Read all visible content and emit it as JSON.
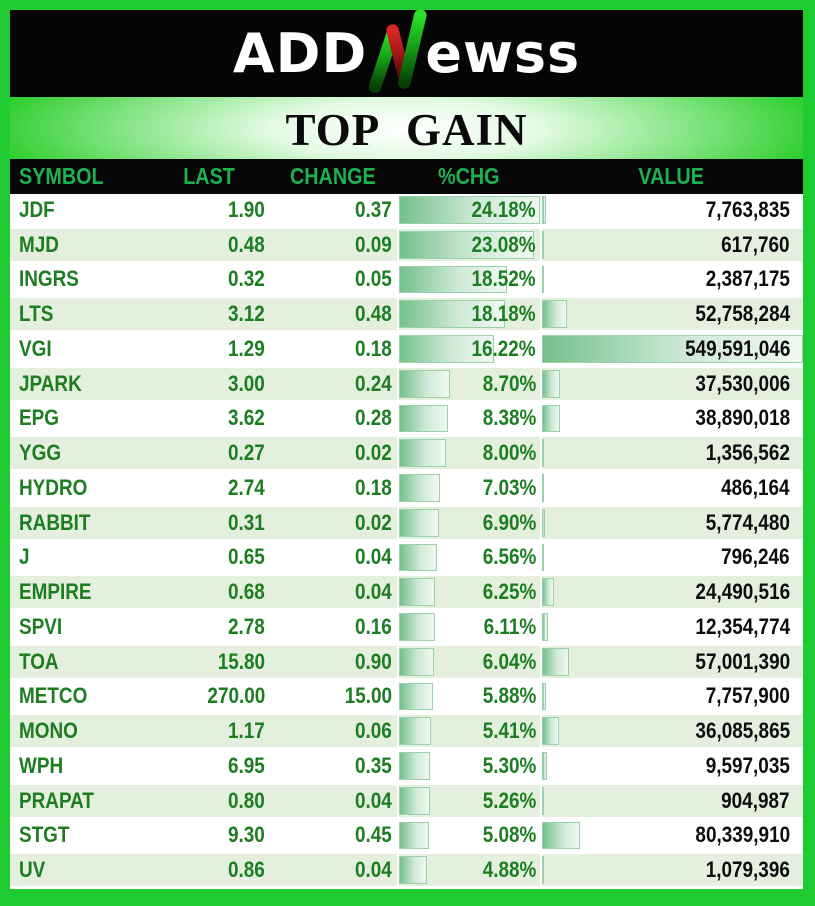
{
  "brand": {
    "prefix": "ADD",
    "suffix": "ewss",
    "n_icon": "green-red-candlestick-n-icon"
  },
  "title": "TOP GAIN",
  "colors": {
    "frame_green": "#1fcb30",
    "banner_black": "#050505",
    "header_text_green": "#1fb151",
    "body_text_green": "#1c7d21",
    "value_text_black": "#0d0d0d",
    "row_alt_green": "#e4efde",
    "databar_green": "#74c08c",
    "databar_border": "#9bd1aa",
    "logo_red": "#d42424",
    "logo_green": "#2ae02a"
  },
  "chart_data": {
    "type": "table",
    "title": "TOP GAIN",
    "columns": [
      "SYMBOL",
      "LAST",
      "CHANGE",
      "%CHG",
      "VALUE"
    ],
    "databar_columns": [
      "%CHG",
      "VALUE"
    ],
    "databar_scaling": "linear from 0 to column maximum",
    "rows": [
      {
        "symbol": "JDF",
        "last": "1.90",
        "change": "0.37",
        "pct": "24.18%",
        "pct_value": 24.18,
        "value": "7,763,835",
        "value_num": 7763835
      },
      {
        "symbol": "MJD",
        "last": "0.48",
        "change": "0.09",
        "pct": "23.08%",
        "pct_value": 23.08,
        "value": "617,760",
        "value_num": 617760
      },
      {
        "symbol": "INGRS",
        "last": "0.32",
        "change": "0.05",
        "pct": "18.52%",
        "pct_value": 18.52,
        "value": "2,387,175",
        "value_num": 2387175
      },
      {
        "symbol": "LTS",
        "last": "3.12",
        "change": "0.48",
        "pct": "18.18%",
        "pct_value": 18.18,
        "value": "52,758,284",
        "value_num": 52758284
      },
      {
        "symbol": "VGI",
        "last": "1.29",
        "change": "0.18",
        "pct": "16.22%",
        "pct_value": 16.22,
        "value": "549,591,046",
        "value_num": 549591046
      },
      {
        "symbol": "JPARK",
        "last": "3.00",
        "change": "0.24",
        "pct": "8.70%",
        "pct_value": 8.7,
        "value": "37,530,006",
        "value_num": 37530006
      },
      {
        "symbol": "EPG",
        "last": "3.62",
        "change": "0.28",
        "pct": "8.38%",
        "pct_value": 8.38,
        "value": "38,890,018",
        "value_num": 38890018
      },
      {
        "symbol": "YGG",
        "last": "0.27",
        "change": "0.02",
        "pct": "8.00%",
        "pct_value": 8.0,
        "value": "1,356,562",
        "value_num": 1356562
      },
      {
        "symbol": "HYDRO",
        "last": "2.74",
        "change": "0.18",
        "pct": "7.03%",
        "pct_value": 7.03,
        "value": "486,164",
        "value_num": 486164
      },
      {
        "symbol": "RABBIT",
        "last": "0.31",
        "change": "0.02",
        "pct": "6.90%",
        "pct_value": 6.9,
        "value": "5,774,480",
        "value_num": 5774480
      },
      {
        "symbol": "J",
        "last": "0.65",
        "change": "0.04",
        "pct": "6.56%",
        "pct_value": 6.56,
        "value": "796,246",
        "value_num": 796246
      },
      {
        "symbol": "EMPIRE",
        "last": "0.68",
        "change": "0.04",
        "pct": "6.25%",
        "pct_value": 6.25,
        "value": "24,490,516",
        "value_num": 24490516
      },
      {
        "symbol": "SPVI",
        "last": "2.78",
        "change": "0.16",
        "pct": "6.11%",
        "pct_value": 6.11,
        "value": "12,354,774",
        "value_num": 12354774
      },
      {
        "symbol": "TOA",
        "last": "15.80",
        "change": "0.90",
        "pct": "6.04%",
        "pct_value": 6.04,
        "value": "57,001,390",
        "value_num": 57001390
      },
      {
        "symbol": "METCO",
        "last": "270.00",
        "change": "15.00",
        "pct": "5.88%",
        "pct_value": 5.88,
        "value": "7,757,900",
        "value_num": 7757900
      },
      {
        "symbol": "MONO",
        "last": "1.17",
        "change": "0.06",
        "pct": "5.41%",
        "pct_value": 5.41,
        "value": "36,085,865",
        "value_num": 36085865
      },
      {
        "symbol": "WPH",
        "last": "6.95",
        "change": "0.35",
        "pct": "5.30%",
        "pct_value": 5.3,
        "value": "9,597,035",
        "value_num": 9597035
      },
      {
        "symbol": "PRAPAT",
        "last": "0.80",
        "change": "0.04",
        "pct": "5.26%",
        "pct_value": 5.26,
        "value": "904,987",
        "value_num": 904987
      },
      {
        "symbol": "STGT",
        "last": "9.30",
        "change": "0.45",
        "pct": "5.08%",
        "pct_value": 5.08,
        "value": "80,339,910",
        "value_num": 80339910
      },
      {
        "symbol": "UV",
        "last": "0.86",
        "change": "0.04",
        "pct": "4.88%",
        "pct_value": 4.88,
        "value": "1,079,396",
        "value_num": 1079396
      }
    ]
  }
}
